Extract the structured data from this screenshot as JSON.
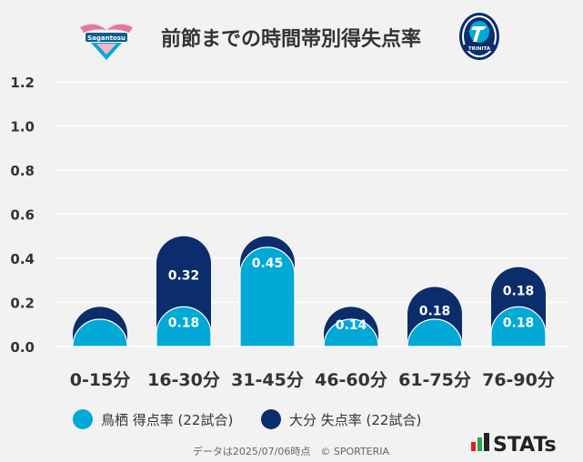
{
  "title": "前節までの時間帯別得失点率",
  "logos": {
    "home_wordmark": "Sagantosu",
    "away_wordmark": "TRINITA"
  },
  "footer": {
    "note": "データは2025/07/06時点　© SPORTERIA",
    "brand": "STATs"
  },
  "colors": {
    "series_scored": "#00a9d6",
    "series_conceded": "#0b2d6b",
    "background": "#f2f2f2",
    "text": "#333333"
  },
  "chart_data": {
    "type": "bar",
    "layout": "overlapping",
    "title": "前節までの時間帯別得失点率",
    "categories": [
      "0-15分",
      "16-30分",
      "31-45分",
      "46-60分",
      "61-75分",
      "76-90分"
    ],
    "ylim": [
      0,
      1.2
    ],
    "yticks": [
      "0.0",
      "0.2",
      "0.4",
      "0.6",
      "0.8",
      "1.0",
      "1.2"
    ],
    "grid": true,
    "legend_position": "bottom",
    "series": [
      {
        "name": "鳥栖 得点率 (22試合)",
        "values": [
          0.09,
          0.18,
          0.45,
          0.05,
          0.09,
          0.18
        ],
        "labels": [
          "",
          "0.18",
          "0.45",
          "",
          "",
          "0.18"
        ]
      },
      {
        "name": "大分 失点率 (22試合)",
        "values": [
          0.18,
          0.5,
          0.5,
          0.18,
          0.27,
          0.36
        ],
        "labels": [
          "",
          "0.32",
          "",
          "0.14",
          "0.18",
          "0.18"
        ]
      }
    ]
  }
}
